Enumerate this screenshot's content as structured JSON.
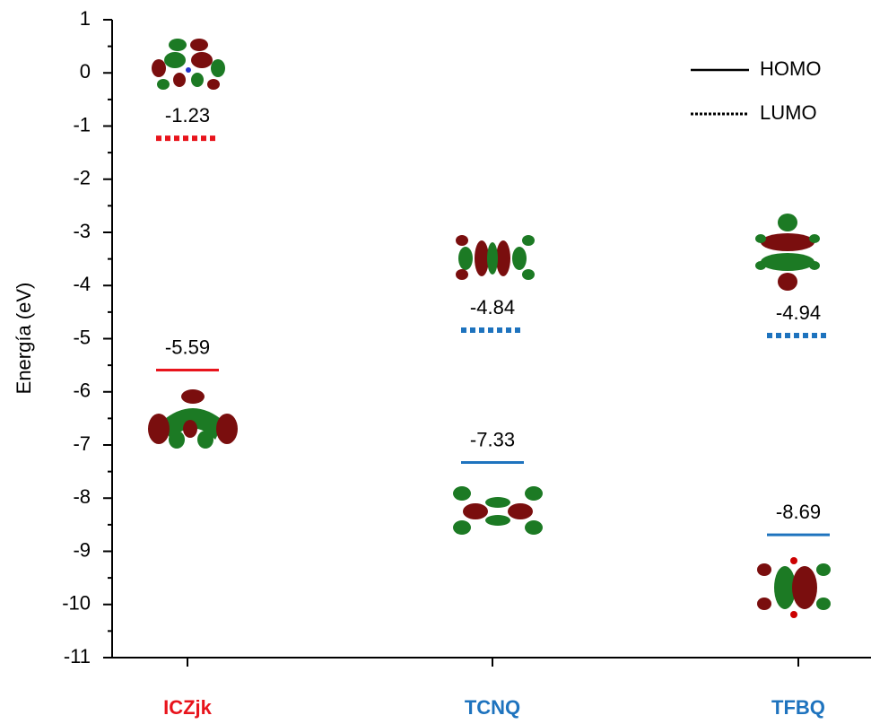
{
  "chart_data": {
    "type": "energy-level",
    "ylabel": "Energía (eV)",
    "categories": [
      "ICZjk",
      "TCNQ",
      "TFBQ"
    ],
    "category_colors": [
      "#e8141c",
      "#1e73be",
      "#1e73be"
    ],
    "series": [
      {
        "name": "HOMO",
        "style": "solid",
        "color": "#000000",
        "values": [
          -5.59,
          -7.33,
          -8.69
        ]
      },
      {
        "name": "LUMO",
        "style": "dotted",
        "color": "#000000",
        "values": [
          -1.23,
          -4.84,
          -4.94
        ]
      }
    ],
    "ylim": [
      -11,
      1
    ],
    "yticks": [
      -11,
      -10,
      -9,
      -8,
      -7,
      -6,
      -5,
      -4,
      -3,
      -2,
      -1,
      0,
      1
    ],
    "minor_yticks": [
      -10.5,
      -9.5,
      -8.5,
      -7.5,
      -6.5,
      -5.5,
      -4.5,
      -3.5,
      -2.5,
      -1.5,
      -0.5,
      0.5
    ]
  }
}
